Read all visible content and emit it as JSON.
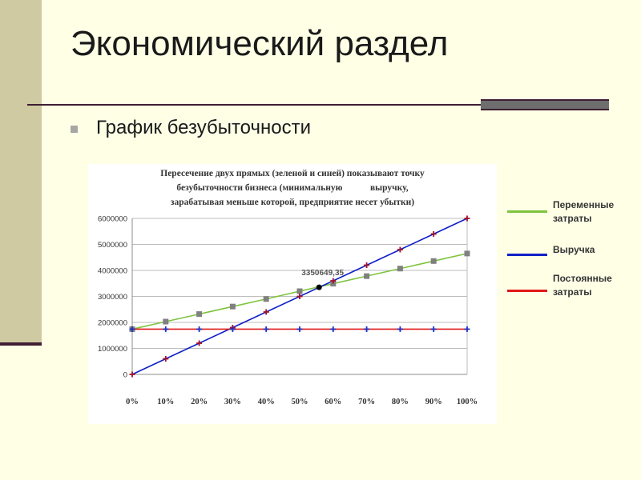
{
  "slide": {
    "title": "Экономический раздел",
    "bullet": "График безубыточности"
  },
  "colors": {
    "variable": "#7ec43d",
    "revenue": "#1020c8",
    "fixed": "#e01818",
    "axis": "#999999",
    "accent_dark": "#3e1f33"
  },
  "legend": {
    "items": [
      {
        "key": "variable",
        "label_line1": "Переменные",
        "label_line2": "затраты",
        "color": "#7ec43d"
      },
      {
        "key": "revenue",
        "label_line1": "Выручка",
        "label_line2": "",
        "color": "#1020c8"
      },
      {
        "key": "fixed",
        "label_line1": "Постоянные",
        "label_line2": "затраты",
        "color": "#e01818"
      }
    ]
  },
  "chart_data": {
    "type": "line",
    "title_line1": "Пересечение двух прямых (зеленой и синей) показывают точку",
    "title_line2": "безубыточности бизнеса (минимальную            выручку,",
    "title_line3": "зарабатывая меньше которой, предприятие несет убытки)",
    "categories": [
      "0%",
      "10%",
      "20%",
      "30%",
      "40%",
      "50%",
      "60%",
      "70%",
      "80%",
      "90%",
      "100%"
    ],
    "y_ticks": [
      0,
      1000000,
      2000000,
      3000000,
      4000000,
      5000000,
      6000000
    ],
    "ylim": [
      0,
      6000000
    ],
    "grid": true,
    "series": [
      {
        "key": "variable",
        "values": [
          1740000,
          2030000,
          2320000,
          2610000,
          2900000,
          3200000,
          3490000,
          3780000,
          4070000,
          4360000,
          4650000
        ],
        "line_color": "#7ec43d",
        "marker": "square",
        "marker_color": "#808080"
      },
      {
        "key": "revenue",
        "values": [
          0,
          600000,
          1200000,
          1800000,
          2400000,
          3000000,
          3600000,
          4200000,
          4800000,
          5400000,
          6000000
        ],
        "line_color": "#1020c8",
        "marker": "plus",
        "marker_color": "#a0102a"
      },
      {
        "key": "fixed",
        "values": [
          1740000,
          1740000,
          1740000,
          1740000,
          1740000,
          1740000,
          1740000,
          1740000,
          1740000,
          1740000,
          1740000
        ],
        "line_color": "#e01818",
        "marker": "plus",
        "marker_color": "#2030c0"
      }
    ],
    "annotation": {
      "label": "3350649,35",
      "x_fraction": 0.558,
      "y": 3350649.35
    }
  }
}
